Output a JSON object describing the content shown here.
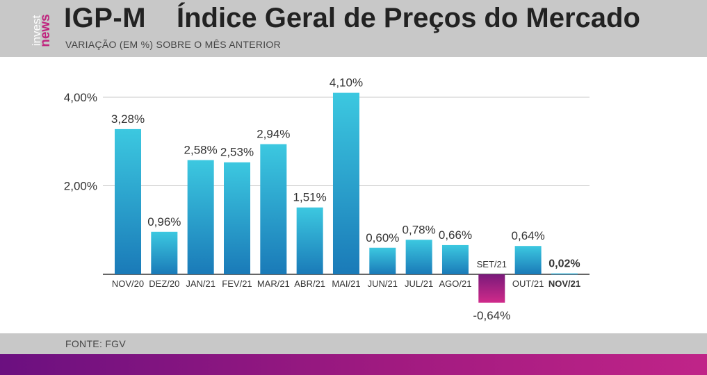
{
  "header": {
    "logo_top": "news",
    "logo_bottom": "invest",
    "title_code": "IGP-M",
    "title_main": "Índice Geral de Preços do Mercado",
    "subtitle": "VARIAÇÃO (EM %) SOBRE O MÊS ANTERIOR"
  },
  "footer": {
    "source": "FONTE: FGV"
  },
  "colors": {
    "positive_top": "#3cc8e0",
    "positive_bottom": "#1a7ab8",
    "negative_top": "#7a1a7a",
    "negative_bottom": "#d02a8a",
    "grid": "#c8c8c8",
    "axis": "#333333",
    "text": "#333333"
  },
  "chart_data": {
    "type": "bar",
    "title": "",
    "xlabel": "",
    "ylabel": "",
    "ylim": [
      -1.0,
      4.5
    ],
    "yticks": [
      2.0,
      4.0
    ],
    "ytick_labels": [
      "2,00%",
      "4,00%"
    ],
    "grid": true,
    "categories": [
      "NOV/20",
      "DEZ/20",
      "JAN/21",
      "FEV/21",
      "MAR/21",
      "ABR/21",
      "MAI/21",
      "JUN/21",
      "JUL/21",
      "AGO/21",
      "SET/21",
      "OUT/21",
      "NOV/21"
    ],
    "values": [
      3.28,
      0.96,
      2.58,
      2.53,
      2.94,
      1.51,
      4.1,
      0.6,
      0.78,
      0.66,
      -0.64,
      0.64,
      0.02
    ],
    "value_labels": [
      "3,28%",
      "0,96%",
      "2,58%",
      "2,53%",
      "2,94%",
      "1,51%",
      "4,10%",
      "0,60%",
      "0,78%",
      "0,66%",
      "-0,64%",
      "0,64%",
      "0,02%"
    ],
    "highlight_last": true
  }
}
